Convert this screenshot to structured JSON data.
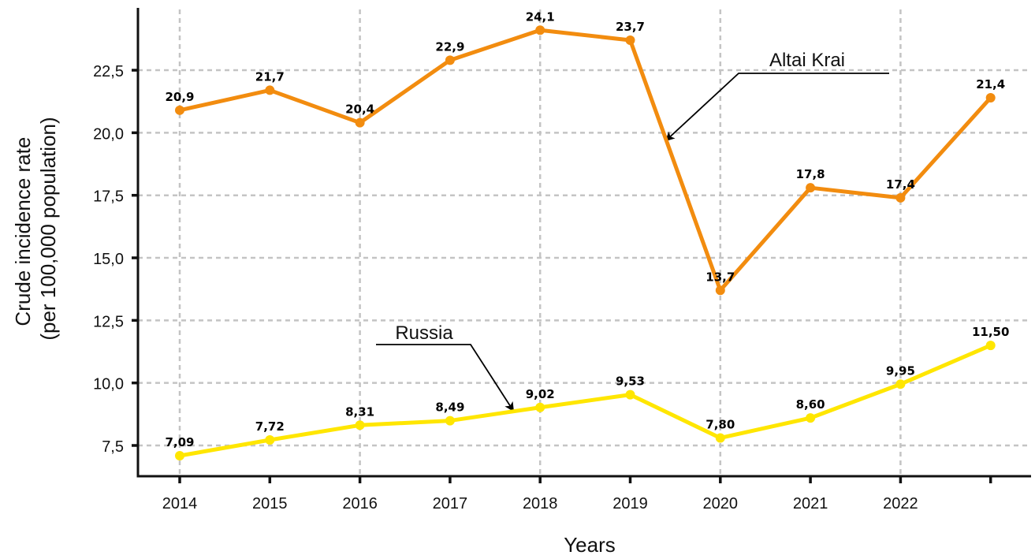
{
  "chart_data": {
    "type": "line",
    "title": "",
    "xlabel": "Years",
    "ylabel": [
      "Crude incidence rate",
      "(per 100,000 population)"
    ],
    "x": [
      2014,
      2015,
      2016,
      2017,
      2018,
      2019,
      2020,
      2021,
      2022,
      2023
    ],
    "x_tick_labels": [
      "2014",
      "2015",
      "2016",
      "2017",
      "2018",
      "2019",
      "2020",
      "2021",
      "2022",
      ""
    ],
    "y_ticks": [
      7.5,
      10.0,
      12.5,
      15.0,
      17.5,
      20.0,
      22.5
    ],
    "y_tick_labels": [
      "7,5",
      "10,0",
      "12,5",
      "15,0",
      "17,5",
      "20,0",
      "22,5"
    ],
    "ylim": [
      6.27,
      25.0
    ],
    "grid": true,
    "vertical_grid_years": [
      2014,
      2016,
      2018,
      2020,
      2022
    ],
    "series": [
      {
        "name": "Altai Krai",
        "color": "#F28C0F",
        "values": [
          20.9,
          21.7,
          20.4,
          22.9,
          24.1,
          23.7,
          13.7,
          17.8,
          17.4,
          21.4
        ],
        "labels": [
          "20,9",
          "21,7",
          "20,4",
          "22,9",
          "24,1",
          "23,7",
          "13,7",
          "17,8",
          "17,4",
          "21,4"
        ]
      },
      {
        "name": "Russia",
        "color": "#FFE600",
        "values": [
          7.09,
          7.72,
          8.31,
          8.49,
          9.02,
          9.53,
          7.8,
          8.6,
          9.95,
          11.5
        ],
        "labels": [
          "7,09",
          "7,72",
          "8,31",
          "8,49",
          "9,02",
          "9,53",
          "7,80",
          "8,60",
          "9,95",
          "11,50"
        ]
      }
    ],
    "annotations": [
      {
        "text": "Altai Krai",
        "series": "Altai Krai",
        "points_to_x": 2019.4,
        "points_to_y": 19.7
      },
      {
        "text": "Russia",
        "series": "Russia",
        "points_to_x": 2017.7,
        "points_to_y": 8.9
      }
    ]
  }
}
